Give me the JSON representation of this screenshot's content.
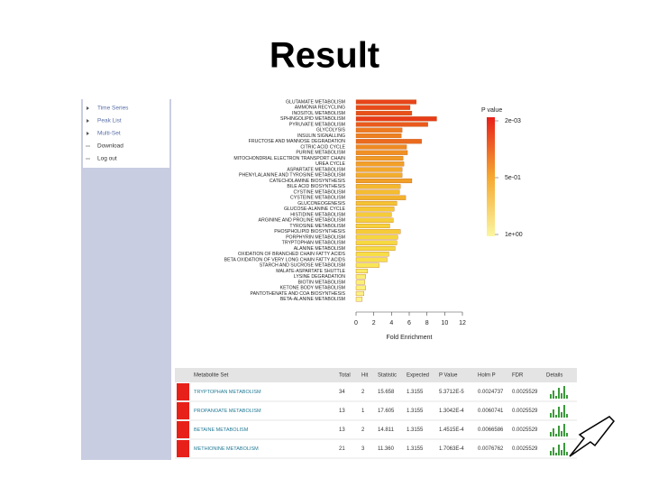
{
  "title": "Result",
  "sidebar": [
    "Time Series",
    "Peak List",
    "Multi-Set",
    "Download",
    "Log out"
  ],
  "chart_data": {
    "type": "bar",
    "orientation": "horizontal",
    "categories": [
      "GLUTAMATE METABOLISM",
      "AMMONIA RECYCLING",
      "INOSITOL METABOLISM",
      "SPHINGOLIPID METABOLISM",
      "PYRUVATE METABOLISM",
      "GLYCOLYSIS",
      "INSULIN SIGNALLING",
      "FRUCTOSE AND MANNOSE DEGRADATION",
      "CITRIC ACID CYCLE",
      "PURINE METABOLISM",
      "MITOCHONDRIAL ELECTRON TRANSPORT CHAIN",
      "UREA CYCLE",
      "ASPARTATE METABOLISM",
      "PHENYLALANINE AND TYROSINE METABOLISM",
      "CATECHOLAMINE BIOSYNTHESIS",
      "BILE ACID BIOSYNTHESIS",
      "CYSTINE METABOLISM",
      "CYSTEINE METABOLISM",
      "GLUCONEOGENESIS",
      "GLUCOSE-ALANINE CYCLE",
      "HISTIDINE METABOLISM",
      "ARGININE AND PROLINE METABOLISM",
      "TYROSINE METABOLISM",
      "PHOSPHOLIPID BIOSYNTHESIS",
      "PORPHYRIN METABOLISM",
      "TRYPTOPHAN METABOLISM",
      "ALANINE METABOLISM",
      "OXIDATION OF BRANCHED CHAIN FATTY ACIDS",
      "BETA OXIDATION OF VERY LONG CHAIN FATTY ACIDS",
      "STARCH AND SUCROSE METABOLISM",
      "MALATE-ASPARTATE SHUTTLE",
      "LYSINE DEGRADATION",
      "BIOTIN METABOLISM",
      "KETONE BODY METABOLISM",
      "PANTOTHENATE AND COA BIOSYNTHESIS",
      "BETA-ALANINE METABOLISM"
    ],
    "values": [
      6.8,
      6.1,
      6.3,
      9.1,
      8.1,
      5.2,
      5.1,
      7.4,
      5.7,
      5.8,
      5.3,
      5.4,
      5.2,
      5.2,
      6.3,
      5.0,
      4.9,
      5.6,
      4.6,
      4.3,
      4.0,
      4.2,
      3.8,
      5.0,
      4.7,
      4.6,
      4.4,
      3.7,
      3.5,
      2.6,
      1.3,
      1.1,
      1.0,
      1.1,
      0.9,
      0.7
    ],
    "colors": [
      "#e8441a",
      "#e84a1a",
      "#e8501a",
      "#e83c18",
      "#ea5a1c",
      "#ee7a20",
      "#ee8020",
      "#ea6a1e",
      "#ef8a22",
      "#f09024",
      "#f09a26",
      "#f2a028",
      "#f2a82a",
      "#f2ae2c",
      "#f0a028",
      "#f3b82e",
      "#f4bc30",
      "#f3b22e",
      "#f4c234",
      "#f5c836",
      "#f5cc38",
      "#f5ce3a",
      "#f6d23c",
      "#f5cc38",
      "#f6d63e",
      "#f6d840",
      "#f6da42",
      "#f7de46",
      "#f7e04a",
      "#f8e656",
      "#f9ea66",
      "#f9ee70",
      "#faf078",
      "#faf07a",
      "#fbf282",
      "#fbf48c"
    ],
    "xlim": [
      0,
      12
    ],
    "xticks": [
      0,
      2,
      4,
      6,
      8,
      10,
      12
    ],
    "xlabel": "Fold Enrichment",
    "legend": {
      "title": "P value",
      "labels": [
        "2e-03",
        "5e-01",
        "1e+00"
      ]
    }
  },
  "table": {
    "header": [
      "Metabolite Set",
      "Total",
      "Hit",
      "Statistic",
      "Expected",
      "P Value",
      "Holm P",
      "FDR",
      "Details"
    ],
    "rows": [
      [
        "TRYPTOPHAN METABOLISM",
        "34",
        "2",
        "15.658",
        "1.3155",
        "5.3712E-5",
        "0.0024737",
        "0.0025529"
      ],
      [
        "PROPANOATE METABOLISM",
        "13",
        "1",
        "17.605",
        "1.3155",
        "1.3042E-4",
        "0.0060741",
        "0.0025529"
      ],
      [
        "BETAINE METABOLISM",
        "13",
        "2",
        "14.811",
        "1.3155",
        "1.4515E-4",
        "0.0066586",
        "0.0025529"
      ],
      [
        "METHIONINE METABOLISM",
        "21",
        "3",
        "11.360",
        "1.3155",
        "1.7063E-4",
        "0.0076762",
        "0.0025529"
      ]
    ]
  }
}
